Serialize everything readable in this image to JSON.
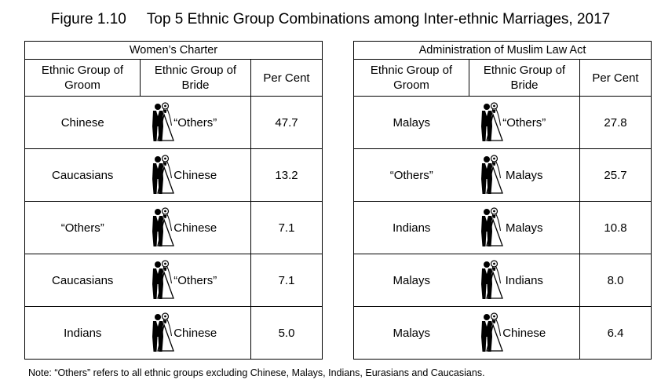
{
  "figure": {
    "number": "Figure 1.10",
    "title": "Top 5 Ethnic Group Combinations among Inter-ethnic Marriages, 2017"
  },
  "headers": {
    "groom": "Ethnic Group of Groom",
    "bride": "Ethnic Group of Bride",
    "percent": "Per Cent"
  },
  "icon": "bride-groom-icon",
  "tables": [
    {
      "name": "Women’s Charter",
      "rows": [
        {
          "groom": "Chinese",
          "bride": "“Others”",
          "percent": "47.7"
        },
        {
          "groom": "Caucasians",
          "bride": "Chinese",
          "percent": "13.2"
        },
        {
          "groom": "“Others”",
          "bride": "Chinese",
          "percent": "7.1"
        },
        {
          "groom": "Caucasians",
          "bride": "“Others”",
          "percent": "7.1"
        },
        {
          "groom": "Indians",
          "bride": "Chinese",
          "percent": "5.0"
        }
      ]
    },
    {
      "name": "Administration of Muslim Law Act",
      "rows": [
        {
          "groom": "Malays",
          "bride": "“Others”",
          "percent": "27.8"
        },
        {
          "groom": "“Others”",
          "bride": "Malays",
          "percent": "25.7"
        },
        {
          "groom": "Indians",
          "bride": "Malays",
          "percent": "10.8"
        },
        {
          "groom": "Malays",
          "bride": "Indians",
          "percent": "8.0"
        },
        {
          "groom": "Malays",
          "bride": "Chinese",
          "percent": "6.4"
        }
      ]
    }
  ],
  "note": "Note: “Others” refers to all ethnic groups excluding Chinese, Malays, Indians, Eurasians and Caucasians."
}
